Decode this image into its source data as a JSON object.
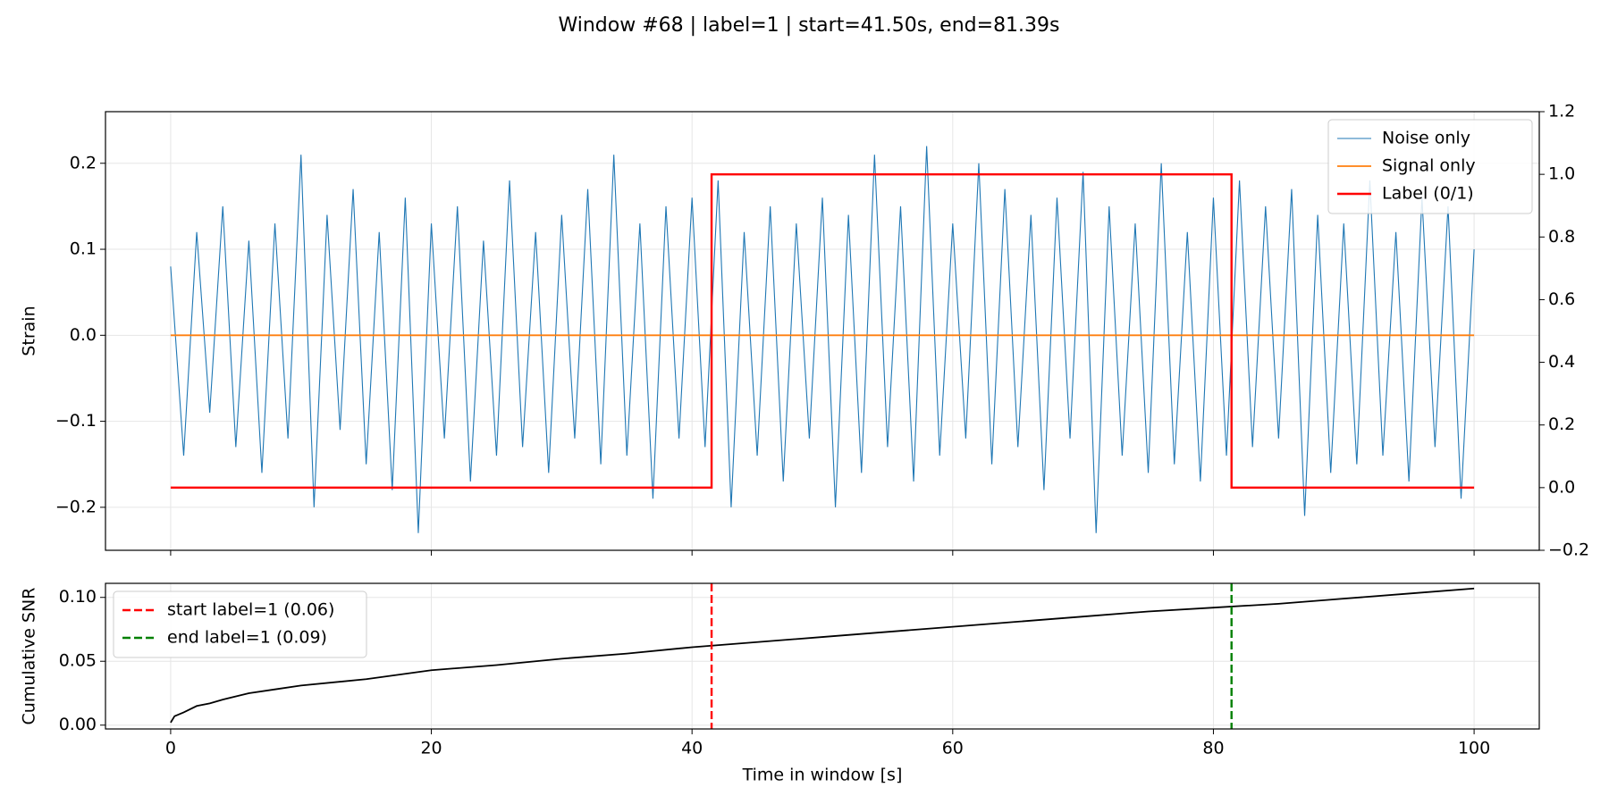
{
  "title": "Window #68 | label=1 | start=41.50s, end=81.39s",
  "chart_data": [
    {
      "type": "line",
      "ylabel": "Strain",
      "xlim": [
        -5,
        105
      ],
      "xticks": [
        0,
        20,
        40,
        60,
        80,
        100
      ],
      "ylim": [
        -0.25,
        0.26
      ],
      "yticks": [
        {
          "value": -0.2,
          "label": "−0.2"
        },
        {
          "value": -0.1,
          "label": "−0.1"
        },
        {
          "value": 0,
          "label": "0.0"
        },
        {
          "value": 0.1,
          "label": "0.1"
        },
        {
          "value": 0.2,
          "label": "0.2"
        }
      ],
      "y2lim": [
        -0.2,
        1.2
      ],
      "y2ticks": [
        {
          "value": -0.2,
          "label": "−0.2"
        },
        {
          "value": 0,
          "label": "0.0"
        },
        {
          "value": 0.2,
          "label": "0.2"
        },
        {
          "value": 0.4,
          "label": "0.4"
        },
        {
          "value": 0.6,
          "label": "0.6"
        },
        {
          "value": 0.8,
          "label": "0.8"
        },
        {
          "value": 1,
          "label": "1.0"
        },
        {
          "value": 1.2,
          "label": "1.2"
        }
      ],
      "grid": true,
      "legend": "upper-right",
      "series": [
        {
          "name": "Noise only",
          "color": "#1f77b4",
          "x": [
            0,
            1,
            2,
            3,
            4,
            5,
            6,
            7,
            8,
            9,
            10,
            11,
            12,
            13,
            14,
            15,
            16,
            17,
            18,
            19,
            20,
            21,
            22,
            23,
            24,
            25,
            26,
            27,
            28,
            29,
            30,
            31,
            32,
            33,
            34,
            35,
            36,
            37,
            38,
            39,
            40,
            41,
            42,
            43,
            44,
            45,
            46,
            47,
            48,
            49,
            50,
            51,
            52,
            53,
            54,
            55,
            56,
            57,
            58,
            59,
            60,
            61,
            62,
            63,
            64,
            65,
            66,
            67,
            68,
            69,
            70,
            71,
            72,
            73,
            74,
            75,
            76,
            77,
            78,
            79,
            80,
            81,
            82,
            83,
            84,
            85,
            86,
            87,
            88,
            89,
            90,
            91,
            92,
            93,
            94,
            95,
            96,
            97,
            98,
            99,
            100
          ],
          "values": [
            0.08,
            -0.14,
            0.12,
            -0.09,
            0.15,
            -0.13,
            0.11,
            -0.16,
            0.13,
            -0.12,
            0.21,
            -0.2,
            0.14,
            -0.11,
            0.17,
            -0.15,
            0.12,
            -0.18,
            0.16,
            -0.23,
            0.13,
            -0.12,
            0.15,
            -0.17,
            0.11,
            -0.14,
            0.18,
            -0.13,
            0.12,
            -0.16,
            0.14,
            -0.12,
            0.17,
            -0.15,
            0.21,
            -0.14,
            0.13,
            -0.19,
            0.15,
            -0.12,
            0.16,
            -0.13,
            0.18,
            -0.2,
            0.12,
            -0.14,
            0.15,
            -0.17,
            0.13,
            -0.12,
            0.16,
            -0.2,
            0.14,
            -0.16,
            0.21,
            -0.13,
            0.15,
            -0.17,
            0.22,
            -0.14,
            0.13,
            -0.12,
            0.2,
            -0.15,
            0.17,
            -0.13,
            0.14,
            -0.18,
            0.16,
            -0.12,
            0.19,
            -0.23,
            0.15,
            -0.14,
            0.13,
            -0.16,
            0.2,
            -0.15,
            0.12,
            -0.17,
            0.16,
            -0.14,
            0.18,
            -0.13,
            0.15,
            -0.12,
            0.17,
            -0.21,
            0.14,
            -0.16,
            0.13,
            -0.15,
            0.18,
            -0.14,
            0.12,
            -0.17,
            0.16,
            -0.13,
            0.15,
            -0.19,
            0.1
          ]
        },
        {
          "name": "Signal only",
          "color": "#ff7f0e",
          "x": [
            0,
            100
          ],
          "values": [
            0,
            0
          ]
        },
        {
          "name": "Label (0/1)",
          "color": "#ff0000",
          "axis": "y2",
          "x": [
            0,
            41.5,
            41.5,
            81.39,
            81.39,
            100
          ],
          "values": [
            0,
            0,
            1,
            1,
            0,
            0
          ]
        }
      ]
    },
    {
      "type": "line",
      "ylabel": "Cumulative SNR",
      "xlabel": "Time in window [s]",
      "xlim": [
        -5,
        105
      ],
      "xticks": [
        0,
        20,
        40,
        60,
        80,
        100
      ],
      "ylim": [
        -0.003,
        0.111
      ],
      "yticks": [
        {
          "value": 0,
          "label": "0.00"
        },
        {
          "value": 0.05,
          "label": "0.05"
        },
        {
          "value": 0.1,
          "label": "0.10"
        }
      ],
      "grid": true,
      "legend": "upper-left",
      "series": [
        {
          "color": "#000000",
          "x": [
            0,
            0.3,
            1,
            2,
            3,
            4,
            6,
            8,
            10,
            15,
            20,
            25,
            30,
            35,
            40,
            45,
            50,
            55,
            60,
            65,
            70,
            75,
            80,
            85,
            90,
            95,
            100
          ],
          "values": [
            0.002,
            0.007,
            0.01,
            0.015,
            0.017,
            0.02,
            0.025,
            0.028,
            0.031,
            0.036,
            0.043,
            0.047,
            0.052,
            0.056,
            0.061,
            0.065,
            0.069,
            0.073,
            0.077,
            0.081,
            0.085,
            0.089,
            0.092,
            0.095,
            0.099,
            0.103,
            0.107
          ]
        }
      ],
      "vlines": [
        {
          "name": "start label=1 (0.06)",
          "color": "#ff0000",
          "x": 41.5
        },
        {
          "name": "end label=1 (0.09)",
          "color": "#008000",
          "x": 81.39
        }
      ]
    }
  ]
}
